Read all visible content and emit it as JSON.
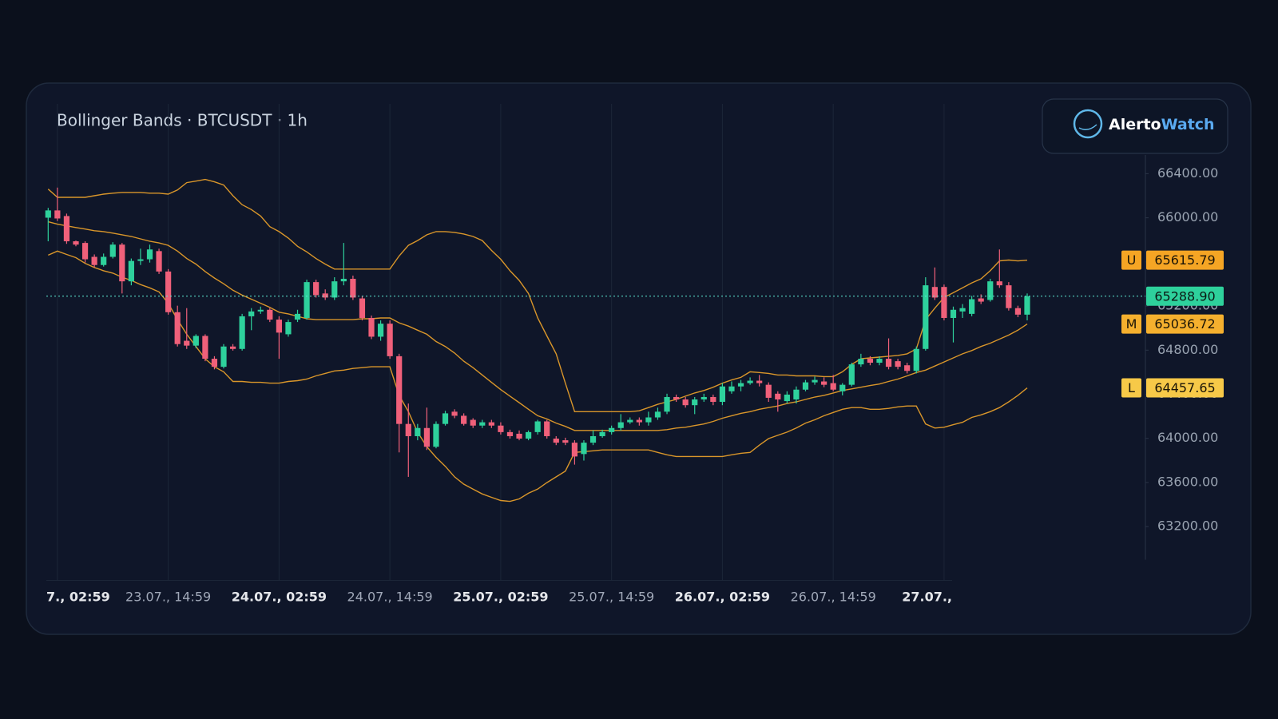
{
  "chart_data": {
    "type": "candlestick",
    "title": "Bollinger Bands · BTCUSDT · 1h",
    "brand": {
      "first": "Alerto",
      "second": "Watch"
    },
    "up_color": "#2ed19c",
    "down_color": "#f0607a",
    "xlim": [
      -0.2,
      118.8
    ],
    "xticks": [
      {
        "value": 1,
        "label": "7., 02:59",
        "bold": true
      },
      {
        "value": 13,
        "label": "23.07., 14:59"
      },
      {
        "value": 25,
        "label": "24.07., 02:59",
        "bold": true
      },
      {
        "value": 37,
        "label": "24.07., 14:59"
      },
      {
        "value": 49,
        "label": "25.07., 02:59",
        "bold": true
      },
      {
        "value": 61,
        "label": "25.07., 14:59"
      },
      {
        "value": 73,
        "label": "26.07., 02:59",
        "bold": true
      },
      {
        "value": 85,
        "label": "26.07., 14:59"
      },
      {
        "value": 97,
        "label": "27.07.,",
        "bold": true
      }
    ],
    "ylim": [
      62900,
      66600
    ],
    "yticks": [
      {
        "value": 63200,
        "label": "63200.00"
      },
      {
        "value": 63600,
        "label": "63600.00"
      },
      {
        "value": 64000,
        "label": "64000.00"
      },
      {
        "value": 64400,
        "label": "64400.00"
      },
      {
        "value": 64800,
        "label": "64800.00"
      },
      {
        "value": 65200,
        "label": "65200.00"
      },
      {
        "value": 65600,
        "label": "65600.00"
      },
      {
        "value": 66000,
        "label": "66000.00"
      },
      {
        "value": 66400,
        "label": "66400.00"
      }
    ],
    "grid": true,
    "last_close_label": "65288.90",
    "last_close_color": "#2ed19c",
    "open": [
      66001,
      66067,
      66016,
      65787,
      65772,
      65646,
      65572,
      65646,
      65757,
      65424,
      65609,
      65624,
      65698,
      65513,
      65144,
      64885,
      64841,
      64929,
      64722,
      64649,
      64833,
      64811,
      65107,
      65151,
      65166,
      65077,
      64944,
      65077,
      65092,
      65417,
      65314,
      65277,
      65424,
      65447,
      65269,
      65092,
      64922,
      65040,
      64745,
      64131,
      64020,
      64094,
      63924,
      64131,
      64242,
      64205,
      64168,
      64116,
      64146,
      64116,
      64057,
      64042,
      63998,
      64057,
      64154,
      63998,
      63983,
      63961,
      63858,
      63961,
      64020,
      64057,
      64094,
      64146,
      64168,
      64146,
      64190,
      64242,
      64375,
      64353,
      64301,
      64353,
      64375,
      64331,
      64427,
      64471,
      64501,
      64523,
      64486,
      64405,
      64338,
      64353,
      64442,
      64508,
      64516,
      64501,
      64427,
      64486,
      64671,
      64722,
      64686,
      64722,
      64700,
      64663,
      64612,
      64811,
      65373,
      65373,
      65092,
      65151,
      65129,
      65269,
      65255,
      65424,
      65388,
      65181,
      65122
    ],
    "high": [
      66090,
      66274,
      66038,
      65794,
      65787,
      65668,
      65676,
      65779,
      65772,
      65631,
      65720,
      65757,
      65720,
      65535,
      65203,
      65181,
      64944,
      64944,
      64745,
      64855,
      64855,
      65129,
      65181,
      65195,
      65181,
      65107,
      65077,
      65166,
      65439,
      65439,
      65351,
      65461,
      65772,
      65476,
      65292,
      65114,
      65070,
      65070,
      64767,
      64316,
      64131,
      64279,
      64154,
      64250,
      64264,
      64227,
      64183,
      64168,
      64168,
      64146,
      64079,
      64072,
      64072,
      64168,
      64168,
      64020,
      64006,
      63983,
      63983,
      64072,
      64079,
      64116,
      64220,
      64190,
      64190,
      64242,
      64279,
      64405,
      64397,
      64375,
      64375,
      64405,
      64397,
      64501,
      64516,
      64530,
      64553,
      64575,
      64508,
      64427,
      64427,
      64471,
      64530,
      64560,
      64553,
      64575,
      64501,
      64686,
      64767,
      64745,
      64745,
      64907,
      64722,
      64686,
      64833,
      65461,
      65550,
      65395,
      65195,
      65218,
      65292,
      65306,
      65447,
      65713,
      65417,
      65203,
      65314
    ],
    "low": [
      65787,
      65971,
      65764,
      65742,
      65594,
      65550,
      65558,
      65631,
      65314,
      65388,
      65572,
      65594,
      65491,
      65122,
      64833,
      64811,
      64818,
      64700,
      64626,
      64634,
      64796,
      64796,
      64981,
      65129,
      65055,
      64722,
      64922,
      65055,
      65077,
      65277,
      65255,
      65255,
      65388,
      65255,
      65070,
      64900,
      64885,
      64722,
      63873,
      63651,
      63983,
      63895,
      63910,
      64116,
      64183,
      64116,
      64094,
      64094,
      64094,
      64035,
      63998,
      63983,
      63983,
      64035,
      63998,
      63939,
      63939,
      63762,
      63799,
      63939,
      64006,
      64035,
      64072,
      64131,
      64116,
      64116,
      64168,
      64220,
      64331,
      64279,
      64220,
      64331,
      64301,
      64301,
      64405,
      64427,
      64486,
      64471,
      64331,
      64242,
      64316,
      64316,
      64427,
      64486,
      64464,
      64427,
      64390,
      64471,
      64649,
      64663,
      64663,
      64626,
      64626,
      64589,
      64589,
      64796,
      65255,
      65070,
      64870,
      65092,
      65107,
      65218,
      65240,
      65365,
      65159,
      65099,
      65070
    ],
    "close": [
      66067,
      65994,
      65787,
      65757,
      65624,
      65572,
      65646,
      65757,
      65424,
      65609,
      65624,
      65713,
      65513,
      65144,
      64855,
      64841,
      64929,
      64722,
      64649,
      64833,
      64811,
      65107,
      65151,
      65166,
      65077,
      64959,
      65055,
      65129,
      65417,
      65299,
      65277,
      65424,
      65447,
      65277,
      65092,
      64922,
      65040,
      64745,
      64131,
      64020,
      64094,
      63924,
      64131,
      64227,
      64205,
      64131,
      64116,
      64146,
      64116,
      64057,
      64020,
      63998,
      64057,
      64154,
      64020,
      63961,
      63961,
      63836,
      63961,
      64020,
      64057,
      64094,
      64146,
      64168,
      64146,
      64190,
      64242,
      64375,
      64353,
      64301,
      64353,
      64375,
      64331,
      64471,
      64471,
      64501,
      64523,
      64501,
      64368,
      64353,
      64397,
      64442,
      64508,
      64530,
      64486,
      64442,
      64486,
      64671,
      64722,
      64686,
      64722,
      64649,
      64649,
      64612,
      64811,
      65388,
      65277,
      65092,
      65166,
      65181,
      65262,
      65240,
      65424,
      65388,
      65181,
      65122,
      65288.9
    ],
    "series": [
      {
        "badge": "U",
        "color": "#d9962a",
        "badge_color": "#f5a524",
        "values": [
          66260,
          66186,
          66186,
          66186,
          66186,
          66200,
          66215,
          66223,
          66230,
          66230,
          66230,
          66223,
          66223,
          66215,
          66252,
          66319,
          66333,
          66348,
          66326,
          66297,
          66200,
          66119,
          66075,
          66016,
          65920,
          65875,
          65816,
          65742,
          65691,
          65631,
          65580,
          65535,
          65535,
          65535,
          65535,
          65535,
          65535,
          65535,
          65654,
          65750,
          65794,
          65846,
          65875,
          65875,
          65868,
          65853,
          65831,
          65794,
          65705,
          65624,
          65520,
          65432,
          65314,
          65092,
          64929,
          64767,
          64501,
          64242,
          64242,
          64242,
          64242,
          64242,
          64242,
          64242,
          64250,
          64279,
          64309,
          64331,
          64353,
          64383,
          64412,
          64434,
          64464,
          64501,
          64530,
          64553,
          64604,
          64597,
          64589,
          64575,
          64575,
          64567,
          64567,
          64567,
          64560,
          64560,
          64604,
          64671,
          64722,
          64730,
          64737,
          64745,
          64752,
          64767,
          64811,
          65077,
          65181,
          65277,
          65321,
          65365,
          65410,
          65447,
          65520,
          65609,
          65617,
          65609,
          65615.79
        ]
      },
      {
        "badge": "M",
        "color": "#d9962a",
        "badge_color": "#f5b02e",
        "values": [
          65964,
          65942,
          65927,
          65912,
          65898,
          65883,
          65875,
          65861,
          65846,
          65831,
          65809,
          65787,
          65772,
          65750,
          65698,
          65631,
          65580,
          65513,
          65454,
          65402,
          65343,
          65299,
          65262,
          65225,
          65188,
          65144,
          65129,
          65107,
          65085,
          65077,
          65077,
          65077,
          65077,
          65077,
          65085,
          65085,
          65092,
          65092,
          65048,
          65018,
          64981,
          64944,
          64878,
          64833,
          64774,
          64700,
          64641,
          64575,
          64508,
          64442,
          64383,
          64324,
          64264,
          64205,
          64176,
          64139,
          64109,
          64072,
          64072,
          64072,
          64072,
          64072,
          64072,
          64072,
          64072,
          64072,
          64072,
          64079,
          64094,
          64101,
          64116,
          64131,
          64154,
          64183,
          64205,
          64227,
          64242,
          64264,
          64279,
          64294,
          64316,
          64331,
          64353,
          64375,
          64390,
          64412,
          64434,
          64449,
          64464,
          64479,
          64493,
          64516,
          64538,
          64567,
          64597,
          64619,
          64656,
          64693,
          64730,
          64767,
          64796,
          64833,
          64863,
          64900,
          64937,
          64981,
          65036.72
        ]
      },
      {
        "badge": "L",
        "color": "#d9962a",
        "badge_color": "#f7c948",
        "values": [
          65661,
          65698,
          65668,
          65639,
          65587,
          65550,
          65520,
          65498,
          65461,
          65432,
          65395,
          65365,
          65328,
          65225,
          65077,
          64944,
          64833,
          64722,
          64649,
          64604,
          64516,
          64516,
          64508,
          64508,
          64501,
          64501,
          64516,
          64523,
          64538,
          64567,
          64589,
          64612,
          64619,
          64634,
          64641,
          64649,
          64649,
          64649,
          64390,
          64242,
          64057,
          63924,
          63828,
          63747,
          63651,
          63585,
          63540,
          63496,
          63466,
          63437,
          63429,
          63451,
          63503,
          63540,
          63599,
          63651,
          63703,
          63873,
          63880,
          63887,
          63895,
          63895,
          63895,
          63895,
          63895,
          63895,
          63873,
          63851,
          63836,
          63836,
          63836,
          63836,
          63836,
          63836,
          63851,
          63865,
          63873,
          63939,
          63998,
          64028,
          64057,
          64094,
          64139,
          64168,
          64205,
          64235,
          64264,
          64279,
          64279,
          64264,
          64264,
          64272,
          64286,
          64294,
          64294,
          64131,
          64094,
          64101,
          64124,
          64146,
          64190,
          64213,
          64242,
          64279,
          64331,
          64390,
          64457.65
        ]
      }
    ]
  }
}
